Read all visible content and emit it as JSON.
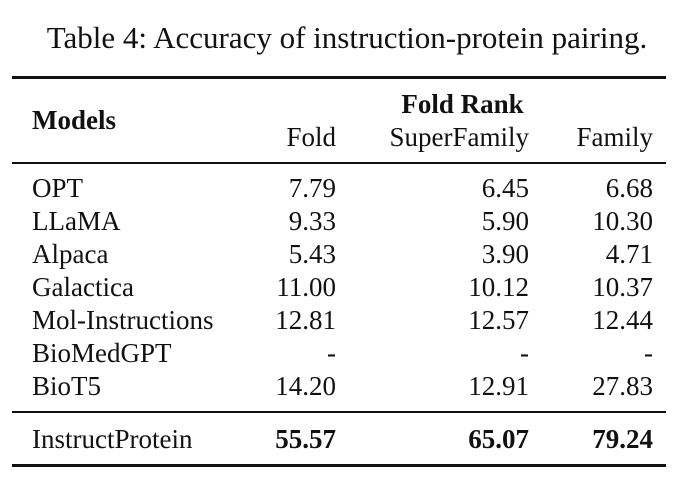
{
  "caption": "Table 4: Accuracy of instruction-protein pairing.",
  "header": {
    "models": "Models",
    "group": "Fold Rank",
    "columns": [
      "Fold",
      "SuperFamily",
      "Family"
    ]
  },
  "rows": [
    {
      "model": "OPT",
      "values": [
        "7.79",
        "6.45",
        "6.68"
      ]
    },
    {
      "model": "LLaMA",
      "values": [
        "9.33",
        "5.90",
        "10.30"
      ]
    },
    {
      "model": "Alpaca",
      "values": [
        "5.43",
        "3.90",
        "4.71"
      ]
    },
    {
      "model": "Galactica",
      "values": [
        "11.00",
        "10.12",
        "10.37"
      ]
    },
    {
      "model": "Mol-Instructions",
      "values": [
        "12.81",
        "12.57",
        "12.44"
      ]
    },
    {
      "model": "BioMedGPT",
      "values": [
        "-",
        "-",
        "-"
      ]
    },
    {
      "model": "BioT5",
      "values": [
        "14.20",
        "12.91",
        "27.83"
      ]
    }
  ],
  "final_row": {
    "model": "InstructProtein",
    "values": [
      "55.57",
      "65.07",
      "79.24"
    ]
  }
}
